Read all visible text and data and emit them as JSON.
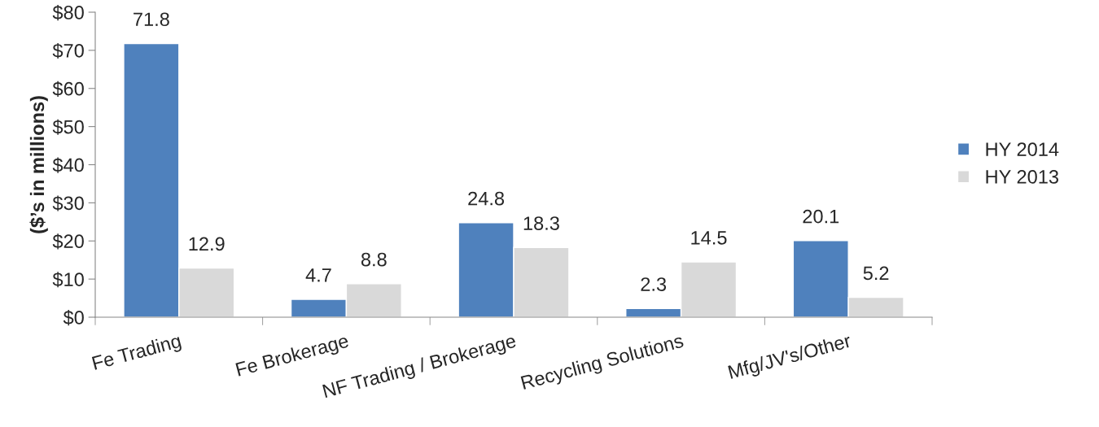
{
  "chart_data": {
    "type": "bar",
    "ylabel": "($’s in millions)",
    "categories": [
      "Fe Trading",
      "Fe Brokerage",
      "NF Trading / Brokerage",
      "Recycling Solutions",
      "Mfg/JV's/Other"
    ],
    "series": [
      {
        "name": "HY 2014",
        "color": "#4f81bd",
        "values": [
          71.8,
          4.7,
          24.8,
          2.3,
          20.1
        ]
      },
      {
        "name": "HY 2013",
        "color": "#d9d9d9",
        "values": [
          12.9,
          8.8,
          18.3,
          14.5,
          5.2
        ]
      }
    ],
    "ylim": [
      0,
      80
    ],
    "yticks": [
      {
        "value": 0,
        "label": "$0"
      },
      {
        "value": 10,
        "label": "$10"
      },
      {
        "value": 20,
        "label": "$20"
      },
      {
        "value": 30,
        "label": "$30"
      },
      {
        "value": 40,
        "label": "$40"
      },
      {
        "value": 50,
        "label": "$50"
      },
      {
        "value": 60,
        "label": "$60"
      },
      {
        "value": 70,
        "label": "$70"
      },
      {
        "value": 80,
        "label": "$80"
      }
    ],
    "data_labels": true,
    "legend": "right",
    "grid": false
  }
}
